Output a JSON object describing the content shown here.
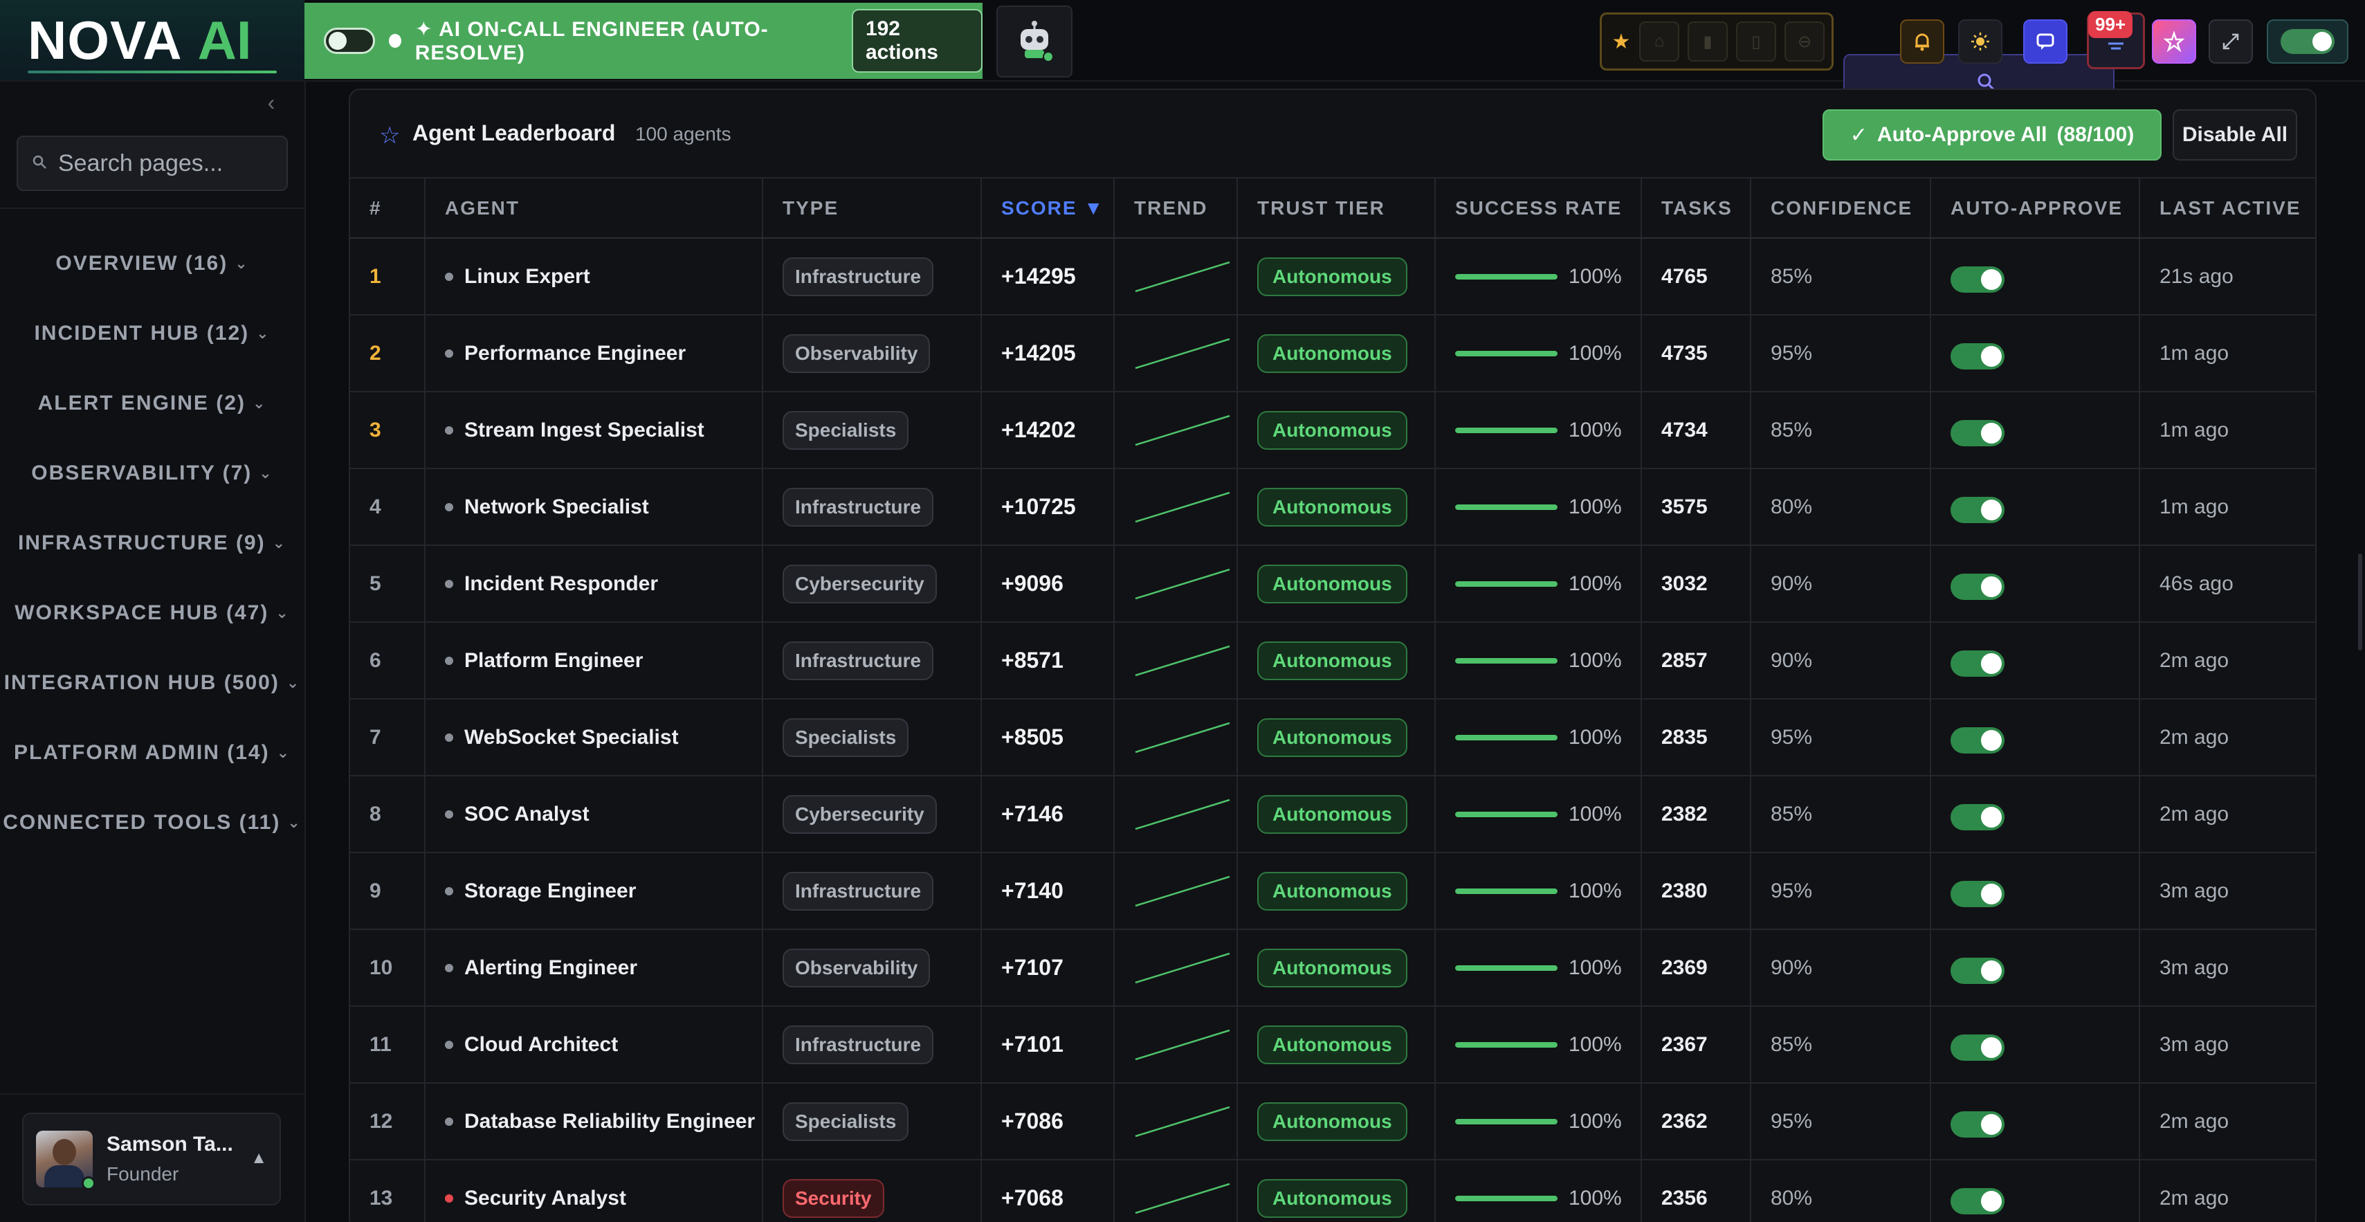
{
  "brand": {
    "name": "NOVA",
    "suffix": "AI"
  },
  "oncall": {
    "label": "✦ AI ON-CALL ENGINEER (AUTO-RESOLVE)",
    "actions": "192 actions"
  },
  "topbar": {
    "badge": "99+"
  },
  "sidebar": {
    "search_placeholder": "Search pages...",
    "nav": [
      {
        "label": "OVERVIEW (16)"
      },
      {
        "label": "INCIDENT HUB (12)"
      },
      {
        "label": "ALERT ENGINE (2)"
      },
      {
        "label": "OBSERVABILITY (7)"
      },
      {
        "label": "INFRASTRUCTURE (9)"
      },
      {
        "label": "WORKSPACE HUB (47)"
      },
      {
        "label": "INTEGRATION HUB (500)"
      },
      {
        "label": "PLATFORM ADMIN (14)"
      },
      {
        "label": "CONNECTED TOOLS (11)"
      }
    ],
    "user": {
      "name": "Samson Ta...",
      "role": "Founder"
    }
  },
  "leaderboard": {
    "title": "Agent Leaderboard",
    "count": "100 agents",
    "approve_all_label": "Auto-Approve All",
    "approve_all_count": "(88/100)",
    "disable_all_label": "Disable All",
    "columns": {
      "rank": "#",
      "agent": "AGENT",
      "type": "TYPE",
      "score": "SCORE ▼",
      "trend": "TREND",
      "tier": "TRUST TIER",
      "success": "SUCCESS RATE",
      "tasks": "TASKS",
      "confidence": "CONFIDENCE",
      "auto": "AUTO-APPROVE",
      "last": "LAST ACTIVE"
    },
    "rows": [
      {
        "rank": "1",
        "agent": "Linux Expert",
        "type": "Infrastructure",
        "score": "+14295",
        "tier": "Autonomous",
        "success": "100%",
        "success_fraction": 1.0,
        "tasks": "4765",
        "confidence": "85%",
        "auto_approve": true,
        "last": "21s ago"
      },
      {
        "rank": "2",
        "agent": "Performance Engineer",
        "type": "Observability",
        "score": "+14205",
        "tier": "Autonomous",
        "success": "100%",
        "success_fraction": 1.0,
        "tasks": "4735",
        "confidence": "95%",
        "auto_approve": true,
        "last": "1m ago"
      },
      {
        "rank": "3",
        "agent": "Stream Ingest Specialist",
        "type": "Specialists",
        "score": "+14202",
        "tier": "Autonomous",
        "success": "100%",
        "success_fraction": 1.0,
        "tasks": "4734",
        "confidence": "85%",
        "auto_approve": true,
        "last": "1m ago"
      },
      {
        "rank": "4",
        "agent": "Network Specialist",
        "type": "Infrastructure",
        "score": "+10725",
        "tier": "Autonomous",
        "success": "100%",
        "success_fraction": 1.0,
        "tasks": "3575",
        "confidence": "80%",
        "auto_approve": true,
        "last": "1m ago"
      },
      {
        "rank": "5",
        "agent": "Incident Responder",
        "type": "Cybersecurity",
        "score": "+9096",
        "tier": "Autonomous",
        "success": "100%",
        "success_fraction": 1.0,
        "tasks": "3032",
        "confidence": "90%",
        "auto_approve": true,
        "last": "46s ago"
      },
      {
        "rank": "6",
        "agent": "Platform Engineer",
        "type": "Infrastructure",
        "score": "+8571",
        "tier": "Autonomous",
        "success": "100%",
        "success_fraction": 1.0,
        "tasks": "2857",
        "confidence": "90%",
        "auto_approve": true,
        "last": "2m ago"
      },
      {
        "rank": "7",
        "agent": "WebSocket Specialist",
        "type": "Specialists",
        "score": "+8505",
        "tier": "Autonomous",
        "success": "100%",
        "success_fraction": 1.0,
        "tasks": "2835",
        "confidence": "95%",
        "auto_approve": true,
        "last": "2m ago"
      },
      {
        "rank": "8",
        "agent": "SOC Analyst",
        "type": "Cybersecurity",
        "score": "+7146",
        "tier": "Autonomous",
        "success": "100%",
        "success_fraction": 1.0,
        "tasks": "2382",
        "confidence": "85%",
        "auto_approve": true,
        "last": "2m ago"
      },
      {
        "rank": "9",
        "agent": "Storage Engineer",
        "type": "Infrastructure",
        "score": "+7140",
        "tier": "Autonomous",
        "success": "100%",
        "success_fraction": 1.0,
        "tasks": "2380",
        "confidence": "95%",
        "auto_approve": true,
        "last": "3m ago"
      },
      {
        "rank": "10",
        "agent": "Alerting Engineer",
        "type": "Observability",
        "score": "+7107",
        "tier": "Autonomous",
        "success": "100%",
        "success_fraction": 1.0,
        "tasks": "2369",
        "confidence": "90%",
        "auto_approve": true,
        "last": "3m ago"
      },
      {
        "rank": "11",
        "agent": "Cloud Architect",
        "type": "Infrastructure",
        "score": "+7101",
        "tier": "Autonomous",
        "success": "100%",
        "success_fraction": 1.0,
        "tasks": "2367",
        "confidence": "85%",
        "auto_approve": true,
        "last": "3m ago"
      },
      {
        "rank": "12",
        "agent": "Database Reliability Engineer",
        "type": "Specialists",
        "score": "+7086",
        "tier": "Autonomous",
        "success": "100%",
        "success_fraction": 1.0,
        "tasks": "2362",
        "confidence": "95%",
        "auto_approve": true,
        "last": "2m ago"
      },
      {
        "rank": "13",
        "agent": "Security Analyst",
        "type": "Security",
        "score": "+7068",
        "tier": "Autonomous",
        "success": "100%",
        "success_fraction": 1.0,
        "tasks": "2356",
        "confidence": "80%",
        "auto_approve": true,
        "last": "2m ago"
      }
    ]
  },
  "colors": {
    "accent_green": "#4aa85b",
    "sort_blue": "#4f7dff",
    "rank_gold": "#f2b33a",
    "security_red": "#e5484d"
  },
  "icons": {
    "favorites": "star-icon",
    "search": "search-icon",
    "notifications": "bell-icon",
    "theme": "sun-icon",
    "chat": "chat-icon",
    "tasks": "tasks-icon",
    "magic": "sparkle-icon",
    "expand": "expand-icon",
    "assistant": "robot-icon"
  }
}
